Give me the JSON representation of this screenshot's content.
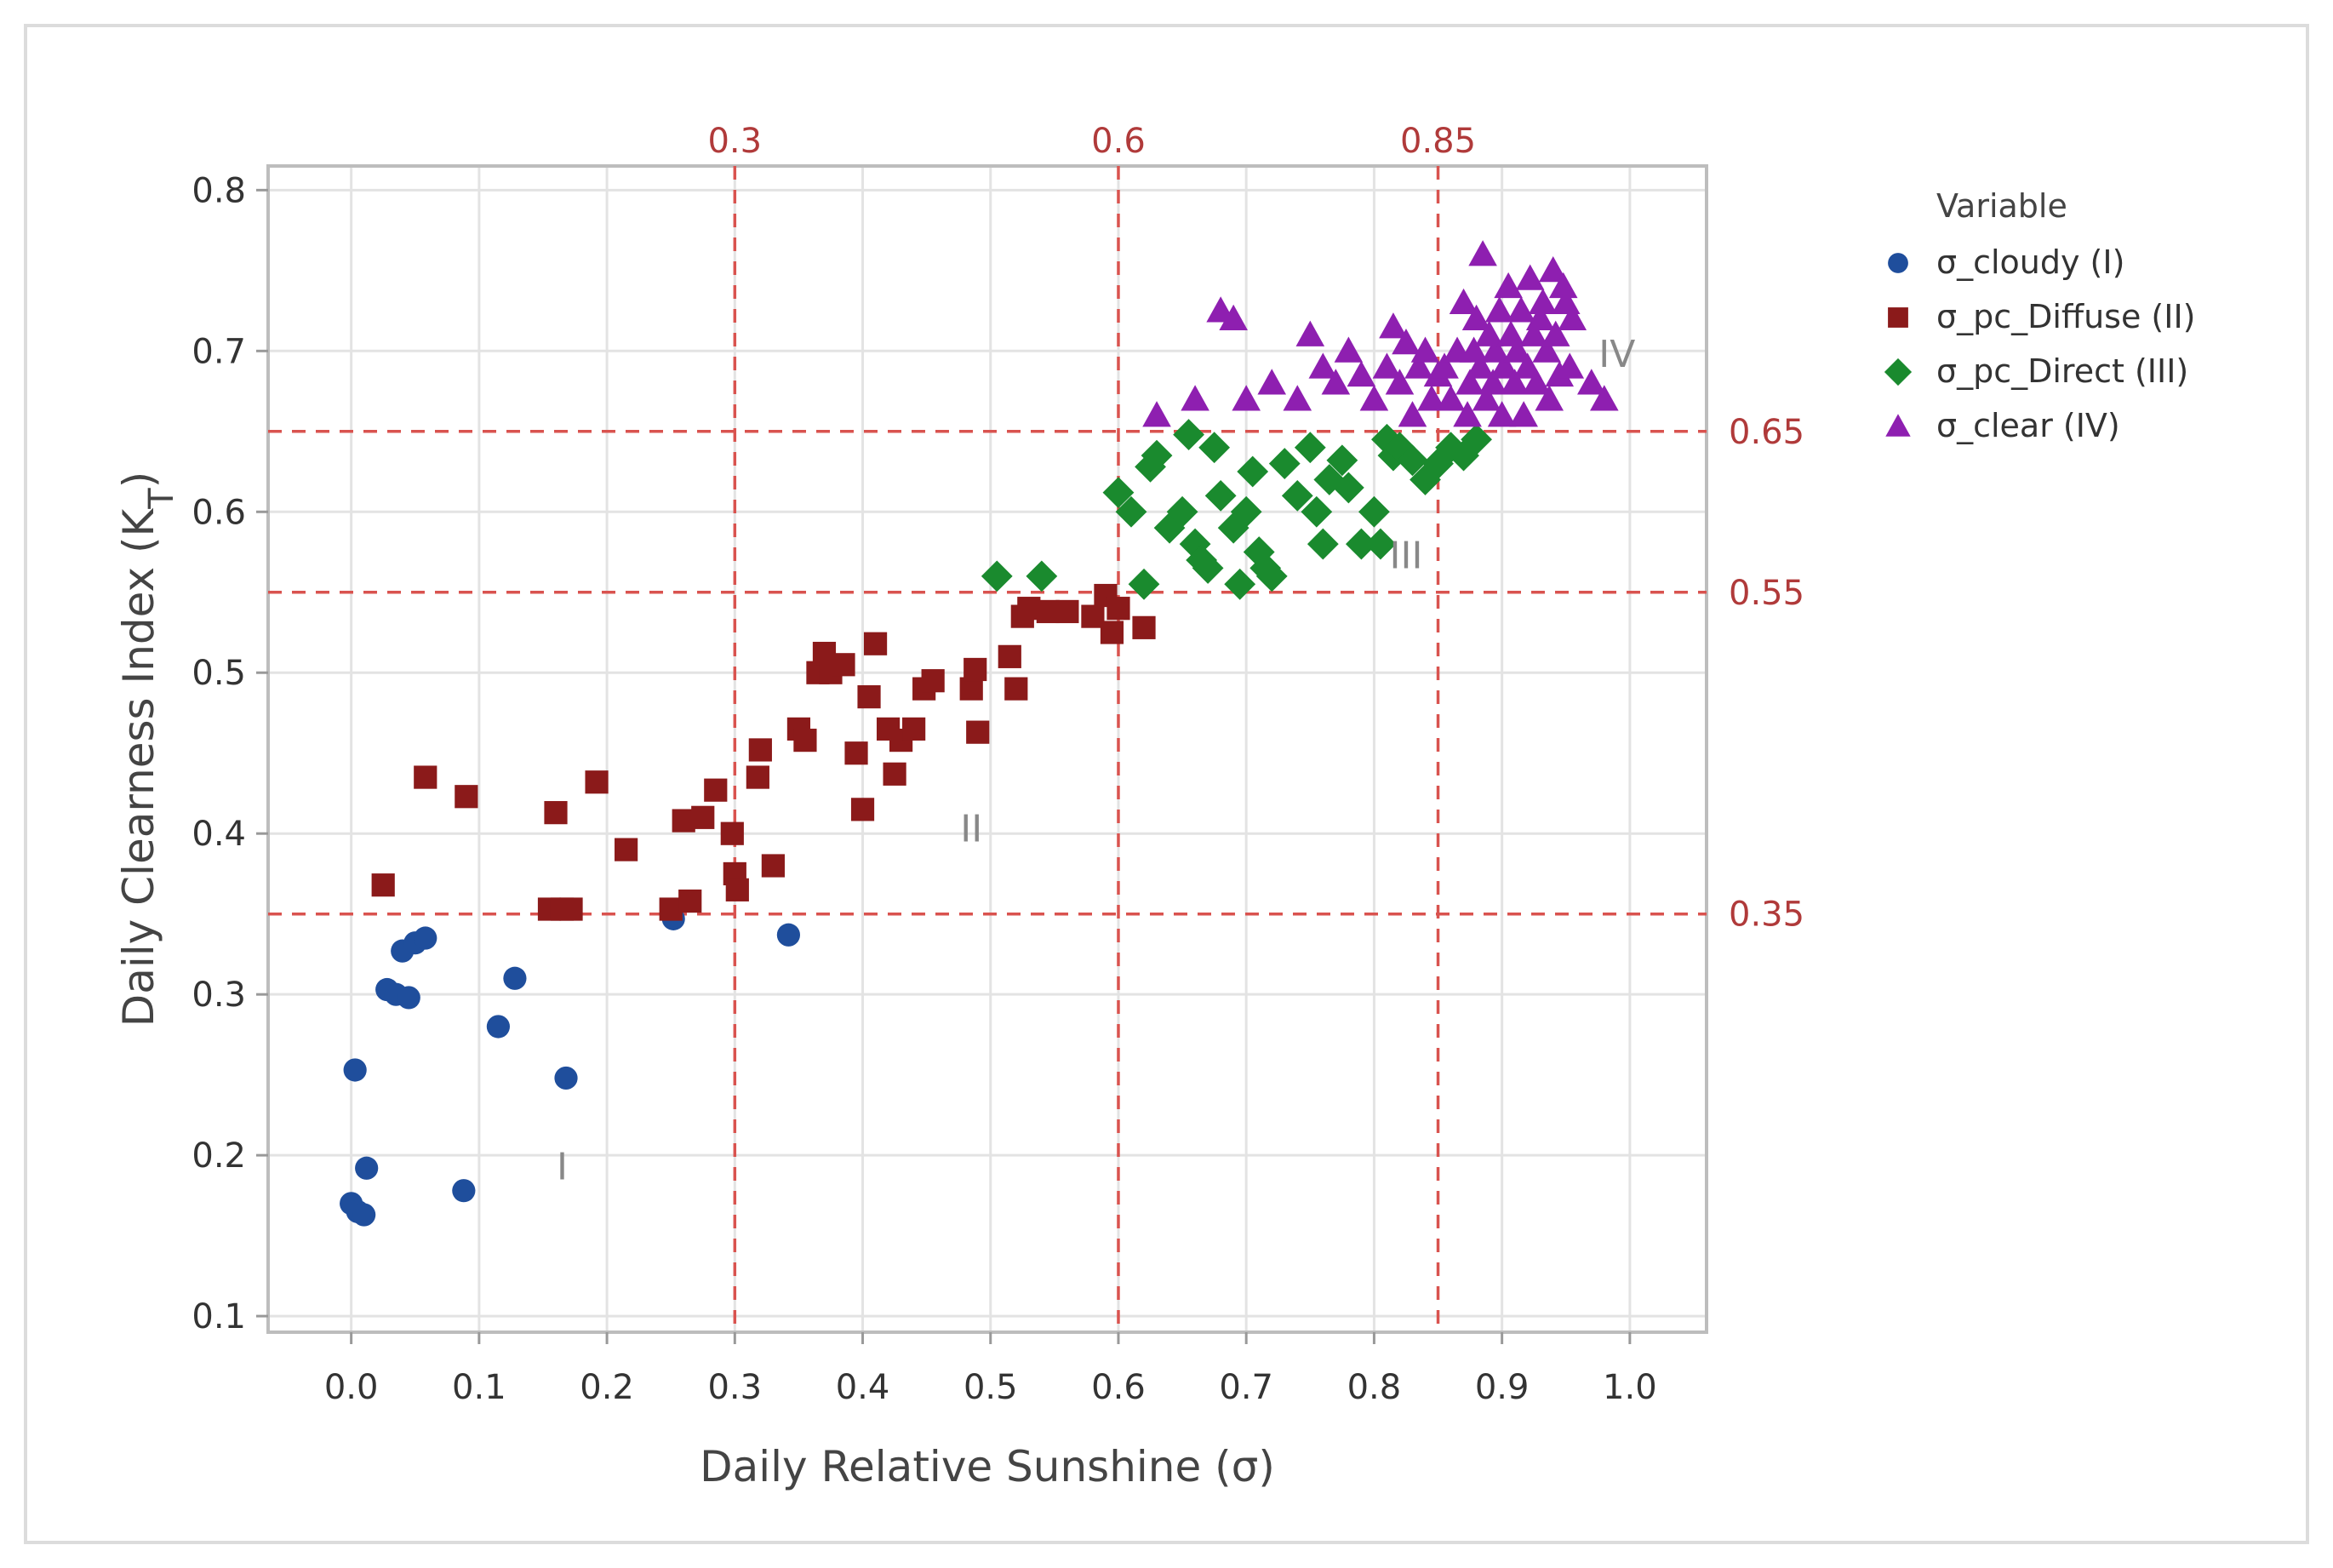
{
  "chart_data": {
    "type": "scatter",
    "title": "",
    "xlabel": "Daily Relative Sunshine (σ)",
    "ylabel": "Daily Clearness Index (K",
    "ylabel_subscript": "T",
    "ylabel_suffix": ")",
    "xlim": [
      -0.065,
      1.06
    ],
    "ylim": [
      0.09,
      0.815
    ],
    "xticks": [
      0.0,
      0.1,
      0.2,
      0.3,
      0.4,
      0.5,
      0.6,
      0.7,
      0.8,
      0.9,
      1.0
    ],
    "xtick_labels": [
      "0.0",
      "0.1",
      "0.2",
      "0.3",
      "0.4",
      "0.5",
      "0.6",
      "0.7",
      "0.8",
      "0.9",
      "1.0"
    ],
    "yticks": [
      0.1,
      0.2,
      0.3,
      0.4,
      0.5,
      0.6,
      0.7,
      0.8
    ],
    "ytick_labels": [
      "0.1",
      "0.2",
      "0.3",
      "0.4",
      "0.5",
      "0.6",
      "0.7",
      "0.8"
    ],
    "grid": true,
    "vlines": [
      {
        "x": 0.3,
        "label": "0.3"
      },
      {
        "x": 0.6,
        "label": "0.6"
      },
      {
        "x": 0.85,
        "label": "0.85"
      }
    ],
    "hlines": [
      {
        "y": 0.35,
        "label": "0.35"
      },
      {
        "y": 0.55,
        "label": "0.55"
      },
      {
        "y": 0.65,
        "label": "0.65"
      }
    ],
    "region_labels": [
      {
        "text": "I",
        "x": 0.165,
        "y": 0.185
      },
      {
        "text": "II",
        "x": 0.485,
        "y": 0.395
      },
      {
        "text": "III",
        "x": 0.825,
        "y": 0.565
      },
      {
        "text": "IV",
        "x": 0.99,
        "y": 0.69
      }
    ],
    "legend": {
      "title": "Variable",
      "position": "right"
    },
    "series": [
      {
        "name": "σ_cloudy (I)",
        "marker": "circle",
        "color": "#1f4e9c",
        "points": [
          [
            0.0,
            0.17
          ],
          [
            0.005,
            0.165
          ],
          [
            0.01,
            0.163
          ],
          [
            0.012,
            0.192
          ],
          [
            0.003,
            0.253
          ],
          [
            0.028,
            0.303
          ],
          [
            0.035,
            0.3
          ],
          [
            0.045,
            0.298
          ],
          [
            0.04,
            0.327
          ],
          [
            0.05,
            0.332
          ],
          [
            0.058,
            0.335
          ],
          [
            0.088,
            0.178
          ],
          [
            0.115,
            0.28
          ],
          [
            0.128,
            0.31
          ],
          [
            0.168,
            0.248
          ],
          [
            0.252,
            0.347
          ],
          [
            0.342,
            0.337
          ]
        ]
      },
      {
        "name": "σ_pc_Diffuse (II)",
        "marker": "square",
        "color": "#8b1a1a",
        "points": [
          [
            0.025,
            0.368
          ],
          [
            0.058,
            0.435
          ],
          [
            0.09,
            0.423
          ],
          [
            0.155,
            0.353
          ],
          [
            0.16,
            0.413
          ],
          [
            0.165,
            0.353
          ],
          [
            0.172,
            0.353
          ],
          [
            0.192,
            0.432
          ],
          [
            0.215,
            0.39
          ],
          [
            0.25,
            0.353
          ],
          [
            0.26,
            0.408
          ],
          [
            0.265,
            0.358
          ],
          [
            0.275,
            0.41
          ],
          [
            0.285,
            0.427
          ],
          [
            0.298,
            0.4
          ],
          [
            0.3,
            0.375
          ],
          [
            0.302,
            0.365
          ],
          [
            0.318,
            0.435
          ],
          [
            0.32,
            0.452
          ],
          [
            0.33,
            0.38
          ],
          [
            0.35,
            0.465
          ],
          [
            0.355,
            0.458
          ],
          [
            0.365,
            0.5
          ],
          [
            0.37,
            0.512
          ],
          [
            0.375,
            0.5
          ],
          [
            0.385,
            0.505
          ],
          [
            0.395,
            0.45
          ],
          [
            0.4,
            0.415
          ],
          [
            0.405,
            0.485
          ],
          [
            0.41,
            0.518
          ],
          [
            0.42,
            0.465
          ],
          [
            0.425,
            0.437
          ],
          [
            0.43,
            0.458
          ],
          [
            0.44,
            0.465
          ],
          [
            0.448,
            0.49
          ],
          [
            0.455,
            0.495
          ],
          [
            0.485,
            0.49
          ],
          [
            0.488,
            0.502
          ],
          [
            0.49,
            0.463
          ],
          [
            0.515,
            0.51
          ],
          [
            0.52,
            0.49
          ],
          [
            0.525,
            0.535
          ],
          [
            0.53,
            0.54
          ],
          [
            0.545,
            0.538
          ],
          [
            0.56,
            0.538
          ],
          [
            0.58,
            0.535
          ],
          [
            0.59,
            0.548
          ],
          [
            0.595,
            0.525
          ],
          [
            0.6,
            0.54
          ],
          [
            0.62,
            0.528
          ]
        ]
      },
      {
        "name": "σ_pc_Direct (III)",
        "marker": "diamond",
        "color": "#1a8a2e",
        "points": [
          [
            0.505,
            0.56
          ],
          [
            0.54,
            0.56
          ],
          [
            0.6,
            0.612
          ],
          [
            0.61,
            0.6
          ],
          [
            0.62,
            0.555
          ],
          [
            0.625,
            0.628
          ],
          [
            0.63,
            0.635
          ],
          [
            0.64,
            0.59
          ],
          [
            0.65,
            0.6
          ],
          [
            0.655,
            0.648
          ],
          [
            0.66,
            0.58
          ],
          [
            0.665,
            0.57
          ],
          [
            0.67,
            0.565
          ],
          [
            0.675,
            0.64
          ],
          [
            0.68,
            0.61
          ],
          [
            0.69,
            0.59
          ],
          [
            0.695,
            0.555
          ],
          [
            0.7,
            0.6
          ],
          [
            0.705,
            0.625
          ],
          [
            0.71,
            0.575
          ],
          [
            0.715,
            0.565
          ],
          [
            0.72,
            0.56
          ],
          [
            0.73,
            0.63
          ],
          [
            0.74,
            0.61
          ],
          [
            0.75,
            0.64
          ],
          [
            0.755,
            0.6
          ],
          [
            0.76,
            0.58
          ],
          [
            0.765,
            0.62
          ],
          [
            0.775,
            0.632
          ],
          [
            0.78,
            0.615
          ],
          [
            0.79,
            0.58
          ],
          [
            0.8,
            0.6
          ],
          [
            0.805,
            0.58
          ],
          [
            0.81,
            0.645
          ],
          [
            0.815,
            0.635
          ],
          [
            0.82,
            0.64
          ],
          [
            0.83,
            0.632
          ],
          [
            0.84,
            0.62
          ],
          [
            0.85,
            0.63
          ],
          [
            0.86,
            0.64
          ],
          [
            0.87,
            0.635
          ],
          [
            0.88,
            0.645
          ]
        ]
      },
      {
        "name": "σ_clear (IV)",
        "marker": "triangle",
        "color": "#8e1fb0",
        "points": [
          [
            0.63,
            0.66
          ],
          [
            0.66,
            0.67
          ],
          [
            0.68,
            0.725
          ],
          [
            0.69,
            0.72
          ],
          [
            0.7,
            0.67
          ],
          [
            0.72,
            0.68
          ],
          [
            0.74,
            0.67
          ],
          [
            0.75,
            0.71
          ],
          [
            0.76,
            0.69
          ],
          [
            0.77,
            0.68
          ],
          [
            0.78,
            0.7
          ],
          [
            0.79,
            0.685
          ],
          [
            0.8,
            0.67
          ],
          [
            0.81,
            0.69
          ],
          [
            0.815,
            0.715
          ],
          [
            0.82,
            0.68
          ],
          [
            0.825,
            0.705
          ],
          [
            0.83,
            0.66
          ],
          [
            0.835,
            0.69
          ],
          [
            0.84,
            0.7
          ],
          [
            0.845,
            0.67
          ],
          [
            0.85,
            0.685
          ],
          [
            0.855,
            0.69
          ],
          [
            0.86,
            0.67
          ],
          [
            0.865,
            0.7
          ],
          [
            0.87,
            0.73
          ],
          [
            0.873,
            0.66
          ],
          [
            0.875,
            0.68
          ],
          [
            0.878,
            0.7
          ],
          [
            0.88,
            0.72
          ],
          [
            0.883,
            0.69
          ],
          [
            0.885,
            0.76
          ],
          [
            0.888,
            0.67
          ],
          [
            0.89,
            0.71
          ],
          [
            0.893,
            0.68
          ],
          [
            0.895,
            0.7
          ],
          [
            0.898,
            0.725
          ],
          [
            0.9,
            0.66
          ],
          [
            0.902,
            0.69
          ],
          [
            0.905,
            0.74
          ],
          [
            0.907,
            0.71
          ],
          [
            0.91,
            0.68
          ],
          [
            0.912,
            0.7
          ],
          [
            0.915,
            0.725
          ],
          [
            0.917,
            0.66
          ],
          [
            0.92,
            0.69
          ],
          [
            0.922,
            0.745
          ],
          [
            0.925,
            0.71
          ],
          [
            0.927,
            0.68
          ],
          [
            0.93,
            0.72
          ],
          [
            0.932,
            0.73
          ],
          [
            0.935,
            0.7
          ],
          [
            0.937,
            0.67
          ],
          [
            0.94,
            0.75
          ],
          [
            0.942,
            0.71
          ],
          [
            0.945,
            0.685
          ],
          [
            0.948,
            0.74
          ],
          [
            0.95,
            0.73
          ],
          [
            0.953,
            0.69
          ],
          [
            0.955,
            0.72
          ],
          [
            0.97,
            0.68
          ],
          [
            0.98,
            0.67
          ]
        ]
      }
    ]
  }
}
